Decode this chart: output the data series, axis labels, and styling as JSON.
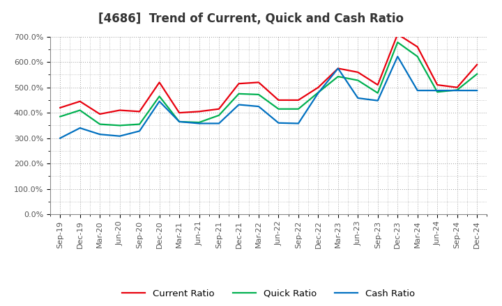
{
  "title": "[4686]  Trend of Current, Quick and Cash Ratio",
  "x_labels": [
    "Sep-19",
    "Dec-19",
    "Mar-20",
    "Jun-20",
    "Sep-20",
    "Dec-20",
    "Mar-21",
    "Jun-21",
    "Sep-21",
    "Dec-21",
    "Mar-22",
    "Jun-22",
    "Sep-22",
    "Dec-22",
    "Mar-23",
    "Jun-23",
    "Sep-23",
    "Dec-23",
    "Mar-24",
    "Jun-24",
    "Sep-24",
    "Dec-24"
  ],
  "current_ratio": [
    420,
    445,
    395,
    410,
    405,
    520,
    400,
    405,
    415,
    515,
    520,
    450,
    450,
    500,
    575,
    560,
    510,
    710,
    660,
    510,
    500,
    590
  ],
  "quick_ratio": [
    385,
    410,
    355,
    350,
    355,
    465,
    365,
    362,
    390,
    475,
    472,
    415,
    415,
    480,
    543,
    528,
    478,
    678,
    622,
    482,
    490,
    553
  ],
  "cash_ratio": [
    300,
    340,
    315,
    308,
    328,
    445,
    365,
    358,
    358,
    432,
    425,
    360,
    358,
    478,
    575,
    458,
    448,
    622,
    488,
    488,
    488,
    488
  ],
  "ylim": [
    0,
    700
  ],
  "yticks": [
    0,
    100,
    200,
    300,
    400,
    500,
    600,
    700
  ],
  "ytick_labels": [
    "0.0%",
    "100.0%",
    "200.0%",
    "300.0%",
    "400.0%",
    "500.0%",
    "600.0%",
    "700.0%"
  ],
  "current_color": "#e8000d",
  "quick_color": "#00b050",
  "cash_color": "#0070c0",
  "bg_color": "#ffffff",
  "plot_bg_color": "#ffffff",
  "grid_color": "#999999",
  "line_width": 1.6,
  "title_fontsize": 12,
  "title_color": "#333333",
  "legend_fontsize": 9.5,
  "tick_fontsize": 8,
  "tick_color": "#555555"
}
